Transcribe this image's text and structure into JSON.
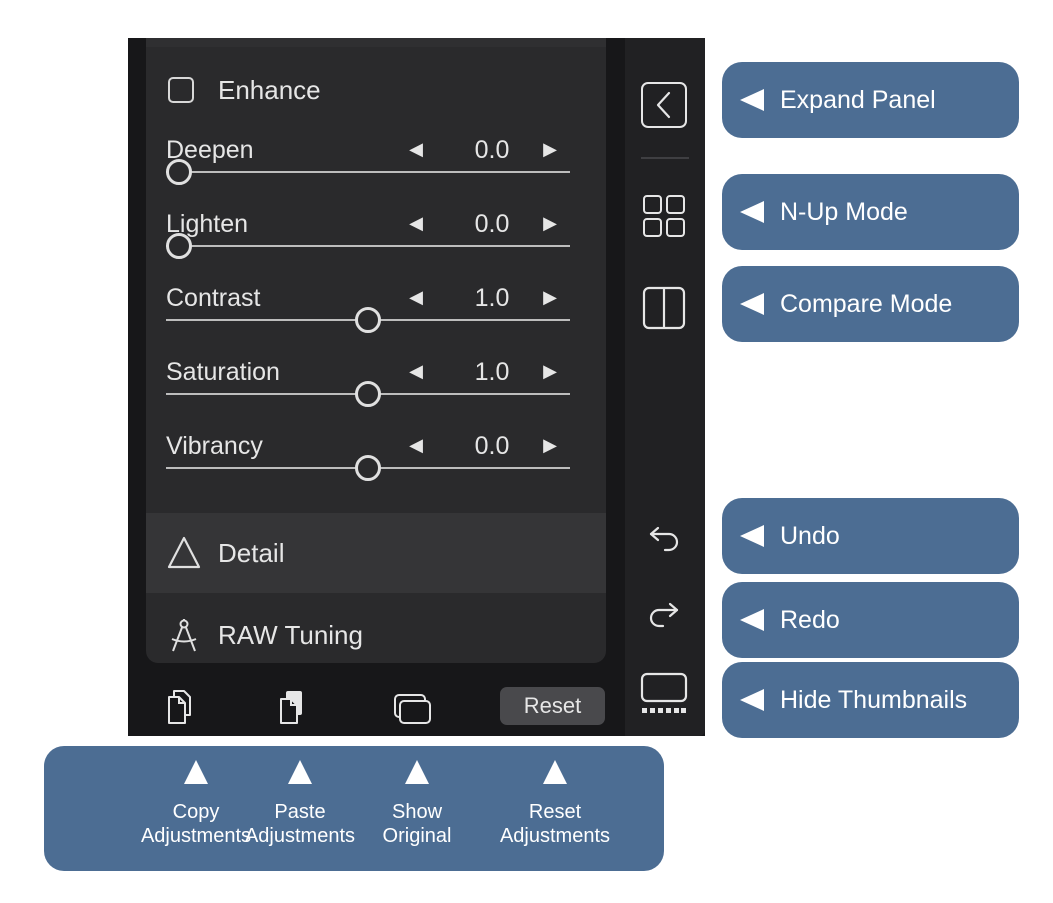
{
  "enhance": {
    "label": "Enhance",
    "checked": false
  },
  "sliders": [
    {
      "label": "Deepen",
      "value": "0.0",
      "fraction": 0.0
    },
    {
      "label": "Lighten",
      "value": "0.0",
      "fraction": 0.0
    },
    {
      "label": "Contrast",
      "value": "1.0",
      "fraction": 0.5
    },
    {
      "label": "Saturation",
      "value": "1.0",
      "fraction": 0.5
    },
    {
      "label": "Vibrancy",
      "value": "0.0",
      "fraction": 0.5
    }
  ],
  "sections": [
    {
      "label": "Detail",
      "icon": "triangle-icon"
    },
    {
      "label": "RAW Tuning",
      "icon": "compass-icon"
    }
  ],
  "bottom_bar": {
    "reset_label": "Reset"
  },
  "callouts": {
    "expand_panel": "Expand Panel",
    "n_up_mode": "N-Up Mode",
    "compare_mode": "Compare Mode",
    "undo": "Undo",
    "redo": "Redo",
    "hide_thumbnails": "Hide Thumbnails"
  },
  "bottom_callouts": [
    {
      "line1": "Copy",
      "line2": "Adjustments"
    },
    {
      "line1": "Paste",
      "line2": "Adjustments"
    },
    {
      "line1": "Show",
      "line2": "Original"
    },
    {
      "line1": "Reset",
      "line2": "Adjustments"
    }
  ],
  "colors": {
    "app_background": "#171719",
    "panel_background": "#2a2a2c",
    "toolbar_background": "#212123",
    "callout_background": "#4c6d93"
  }
}
